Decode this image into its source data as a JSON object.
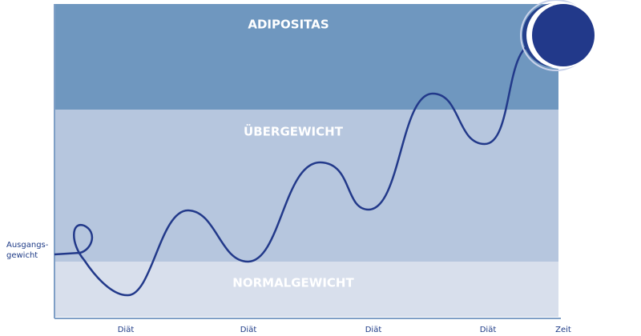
{
  "zones": {
    "obese": "ADIPOSITAS",
    "overweight": "ÜBERGEWICHT",
    "normal": "NORMALGEWICHT"
  },
  "start_label": [
    "Ausgangs-",
    "gewicht"
  ],
  "diet_labels": [
    "Diät",
    "Diät",
    "Diät",
    "Diät"
  ],
  "x_axis_label": "Zeit"
}
